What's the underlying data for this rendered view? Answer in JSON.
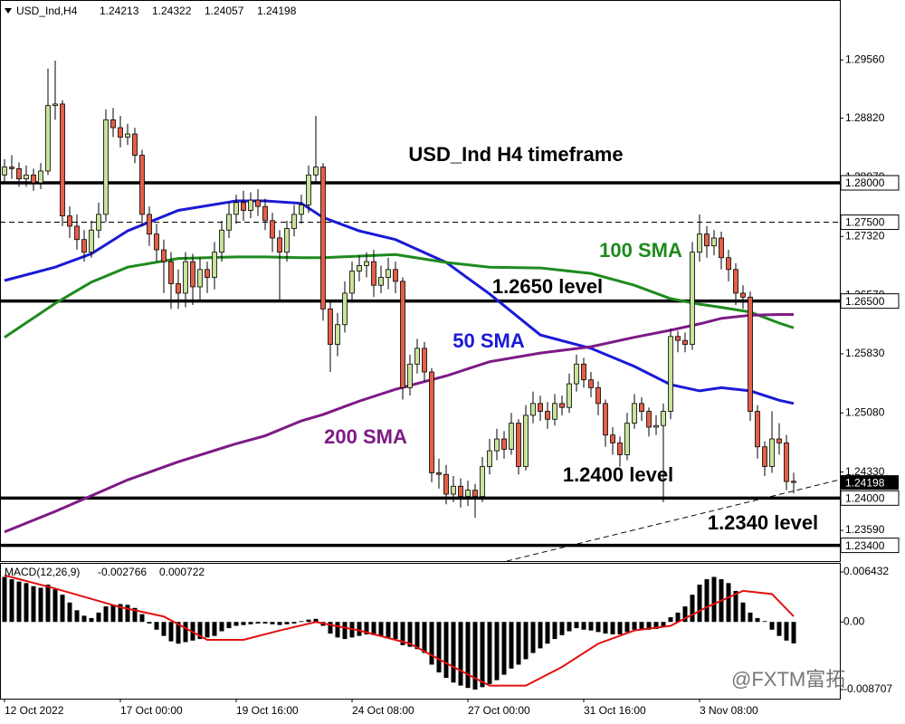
{
  "chart_data": {
    "type": "candlestick",
    "symbol": "USD_Ind,H4",
    "header_ohlc": [
      1.24213,
      1.24322,
      1.24057,
      1.24198
    ],
    "up_color": "#c9e29a",
    "down_color": "#e35f48",
    "ylim": [
      1.232,
      1.3032
    ],
    "yticks": [
      {
        "value": 1.2956,
        "label": "1.29560"
      },
      {
        "value": 1.2882,
        "label": "1.28820"
      },
      {
        "value": 1.2807,
        "label": "1.28070"
      },
      {
        "value": 1.2732,
        "label": "1.27320"
      },
      {
        "value": 1.2657,
        "label": "1.26570"
      },
      {
        "value": 1.2583,
        "label": "1.25830"
      },
      {
        "value": 1.2508,
        "label": "1.25080"
      },
      {
        "value": 1.2433,
        "label": "1.24330"
      },
      {
        "value": 1.2359,
        "label": "1.23590"
      }
    ],
    "categories": [
      "12 Oct 2022",
      null,
      null,
      null,
      null,
      null,
      null,
      null,
      null,
      null,
      null,
      null,
      null,
      null,
      null,
      null,
      "17 Oct 00:00",
      null,
      null,
      null,
      null,
      null,
      null,
      null,
      null,
      null,
      null,
      null,
      null,
      null,
      null,
      null,
      "19 Oct 16:00",
      null,
      null,
      null,
      null,
      null,
      null,
      null,
      null,
      null,
      null,
      null,
      null,
      null,
      null,
      null,
      "24 Oct 08:00",
      null,
      null,
      null,
      null,
      null,
      null,
      null,
      null,
      null,
      null,
      null,
      null,
      null,
      null,
      null,
      "27 Oct 00:00",
      null,
      null,
      null,
      null,
      null,
      null,
      null,
      null,
      null,
      null,
      null,
      null,
      null,
      null,
      null,
      "31 Oct 16:00",
      null,
      null,
      null,
      null,
      null,
      null,
      null,
      null,
      null,
      null,
      null,
      null,
      null,
      null,
      null,
      "3 Nov 08:00",
      null,
      null,
      null,
      null,
      null,
      null,
      null,
      null,
      null,
      null,
      null,
      null,
      null
    ],
    "open": [
      1.281,
      1.282,
      1.2818,
      1.2805,
      1.281,
      1.28,
      1.2815,
      1.2898,
      1.29,
      1.2758,
      1.2745,
      1.2728,
      1.2712,
      1.274,
      1.276,
      1.288,
      1.287,
      1.2858,
      1.2862,
      1.2835,
      1.276,
      1.2735,
      1.2715,
      1.27,
      1.2672,
      1.266,
      1.27,
      1.2668,
      1.269,
      1.268,
      1.2712,
      1.274,
      1.276,
      1.2775,
      1.2765,
      1.2778,
      1.277,
      1.2752,
      1.273,
      1.2712,
      1.2742,
      1.276,
      1.2772,
      1.281,
      1.282,
      1.264,
      1.2595,
      1.262,
      1.266,
      1.2688,
      1.2695,
      1.27,
      1.267,
      1.268,
      1.269,
      1.2675,
      1.254,
      1.257,
      1.259,
      1.256,
      1.2432,
      1.243,
      1.2405,
      1.2415,
      1.2402,
      1.241,
      1.2402,
      1.244,
      1.246,
      1.2475,
      1.2462,
      1.2495,
      1.244,
      1.2505,
      1.252,
      1.251,
      1.25,
      1.252,
      1.2515,
      1.2545,
      1.257,
      1.255,
      1.254,
      1.252,
      1.248,
      1.247,
      1.2455,
      1.2495,
      1.252,
      1.251,
      1.249,
      1.2492,
      1.251,
      1.2605,
      1.26,
      1.2595,
      1.2712,
      1.2735,
      1.272,
      1.273,
      1.2705,
      1.269,
      1.266,
      1.2655,
      1.251,
      1.2465,
      1.244,
      1.2475,
      1.247,
      1.24213
    ],
    "high": [
      1.283,
      1.2835,
      1.2826,
      1.2822,
      1.2818,
      1.2825,
      1.2945,
      1.2955,
      1.2905,
      1.277,
      1.276,
      1.274,
      1.2752,
      1.2775,
      1.2893,
      1.2895,
      1.2885,
      1.2875,
      1.287,
      1.2842,
      1.277,
      1.2748,
      1.2728,
      1.2712,
      1.269,
      1.2712,
      1.271,
      1.2705,
      1.27,
      1.2725,
      1.2752,
      1.2775,
      1.2785,
      1.279,
      1.2788,
      1.2792,
      1.278,
      1.2762,
      1.274,
      1.2752,
      1.2772,
      1.2785,
      1.2822,
      1.2885,
      1.2825,
      1.265,
      1.2635,
      1.2675,
      1.27,
      1.2708,
      1.2712,
      1.2715,
      1.2695,
      1.2705,
      1.27,
      1.268,
      1.2582,
      1.2602,
      1.2598,
      1.2565,
      1.245,
      1.2442,
      1.2428,
      1.2425,
      1.2422,
      1.2418,
      1.2452,
      1.2475,
      1.2488,
      1.2485,
      1.2508,
      1.25,
      1.2518,
      1.2535,
      1.253,
      1.2522,
      1.2532,
      1.253,
      1.2558,
      1.2582,
      1.2578,
      1.256,
      1.2548,
      1.2525,
      1.249,
      1.2478,
      1.2508,
      1.2532,
      1.2528,
      1.2515,
      1.2505,
      1.252,
      1.2615,
      1.2612,
      1.261,
      1.2725,
      1.276,
      1.2745,
      1.274,
      1.2738,
      1.2715,
      1.2698,
      1.267,
      1.2662,
      1.2518,
      1.2472,
      1.251,
      1.2495,
      1.248,
      1.24322
    ],
    "low": [
      1.28,
      1.2805,
      1.2795,
      1.2795,
      1.279,
      1.2792,
      1.281,
      1.288,
      1.2745,
      1.273,
      1.2715,
      1.27,
      1.2705,
      1.273,
      1.275,
      1.2858,
      1.2845,
      1.2848,
      1.2825,
      1.2745,
      1.272,
      1.27,
      1.266,
      1.264,
      1.264,
      1.2642,
      1.2645,
      1.265,
      1.266,
      1.2665,
      1.27,
      1.273,
      1.2748,
      1.2752,
      1.2755,
      1.2758,
      1.274,
      1.2712,
      1.265,
      1.27,
      1.2732,
      1.2748,
      1.2762,
      1.28,
      1.2625,
      1.256,
      1.258,
      1.261,
      1.2648,
      1.2675,
      1.268,
      1.2655,
      1.266,
      1.2665,
      1.266,
      1.2525,
      1.253,
      1.2558,
      1.2548,
      1.242,
      1.2412,
      1.2392,
      1.2395,
      1.2388,
      1.239,
      1.2375,
      1.2395,
      1.243,
      1.2448,
      1.245,
      1.2455,
      1.243,
      1.2435,
      1.2495,
      1.2498,
      1.2488,
      1.2492,
      1.2505,
      1.2508,
      1.2535,
      1.254,
      1.2528,
      1.2505,
      1.2465,
      1.2455,
      1.244,
      1.2448,
      1.2488,
      1.2498,
      1.2478,
      1.248,
      1.2395,
      1.25,
      1.2585,
      1.2585,
      1.2588,
      1.27,
      1.2705,
      1.2708,
      1.269,
      1.2675,
      1.2645,
      1.264,
      1.2498,
      1.245,
      1.2428,
      1.2432,
      1.2455,
      1.241,
      1.24057
    ],
    "close": [
      1.282,
      1.2818,
      1.2805,
      1.281,
      1.28,
      1.2815,
      1.2898,
      1.29,
      1.2758,
      1.2745,
      1.2728,
      1.2712,
      1.274,
      1.276,
      1.288,
      1.287,
      1.2858,
      1.2862,
      1.2835,
      1.276,
      1.2735,
      1.2715,
      1.27,
      1.2672,
      1.266,
      1.27,
      1.2668,
      1.269,
      1.268,
      1.2712,
      1.274,
      1.276,
      1.2775,
      1.2765,
      1.2778,
      1.277,
      1.2752,
      1.273,
      1.2712,
      1.2742,
      1.276,
      1.2772,
      1.281,
      1.282,
      1.264,
      1.2595,
      1.262,
      1.266,
      1.2688,
      1.2695,
      1.27,
      1.267,
      1.268,
      1.269,
      1.2675,
      1.254,
      1.257,
      1.259,
      1.256,
      1.2432,
      1.243,
      1.2405,
      1.2415,
      1.2402,
      1.241,
      1.2402,
      1.244,
      1.246,
      1.2475,
      1.2462,
      1.2495,
      1.244,
      1.2505,
      1.252,
      1.251,
      1.25,
      1.252,
      1.2515,
      1.2545,
      1.257,
      1.255,
      1.254,
      1.252,
      1.248,
      1.247,
      1.2455,
      1.2495,
      1.252,
      1.251,
      1.249,
      1.2492,
      1.251,
      1.2605,
      1.26,
      1.2595,
      1.2712,
      1.2735,
      1.272,
      1.273,
      1.2705,
      1.269,
      1.266,
      1.2655,
      1.251,
      1.2465,
      1.244,
      1.2475,
      1.247,
      1.2421,
      1.24198
    ],
    "series": [
      {
        "name": "50 SMA",
        "color": "#1a1ad6",
        "x": [
          0,
          7,
          12,
          17,
          24,
          32,
          36,
          41,
          44,
          49,
          54,
          61,
          67,
          74,
          81,
          87,
          92,
          96,
          99,
          103,
          107,
          109
        ],
        "values": [
          1.2676,
          1.2693,
          1.271,
          1.2739,
          1.2765,
          1.2777,
          1.2777,
          1.2774,
          1.2756,
          1.2739,
          1.2728,
          1.2699,
          1.2659,
          1.2607,
          1.259,
          1.2567,
          1.2544,
          1.2536,
          1.254,
          1.2536,
          1.2524,
          1.252
        ]
      },
      {
        "name": "100 SMA",
        "color": "#1e8a1e",
        "x": [
          0,
          7,
          12,
          17,
          24,
          32,
          36,
          41,
          44,
          49,
          54,
          61,
          67,
          74,
          81,
          87,
          92,
          96,
          99,
          103,
          107,
          109
        ],
        "values": [
          1.2604,
          1.2647,
          1.2674,
          1.2693,
          1.2704,
          1.2706,
          1.2706,
          1.2705,
          1.2705,
          1.2707,
          1.2709,
          1.2699,
          1.2693,
          1.2692,
          1.2685,
          1.267,
          1.2653,
          1.2646,
          1.2642,
          1.2636,
          1.2622,
          1.2616
        ]
      },
      {
        "name": "200 SMA",
        "color": "#7e1a86",
        "x": [
          0,
          7,
          12,
          17,
          24,
          32,
          36,
          41,
          44,
          49,
          54,
          61,
          67,
          74,
          81,
          87,
          92,
          96,
          99,
          103,
          107,
          109
        ],
        "values": [
          1.2357,
          1.2383,
          1.2403,
          1.2423,
          1.2446,
          1.2469,
          1.2479,
          1.2498,
          1.2506,
          1.2523,
          1.2538,
          1.2555,
          1.2573,
          1.2584,
          1.2592,
          1.2604,
          1.2613,
          1.2621,
          1.2628,
          1.2632,
          1.2633,
          1.2633
        ]
      }
    ],
    "levels": [
      {
        "value": 1.28,
        "label": "1.28000",
        "style": "solid"
      },
      {
        "value": 1.275,
        "label": "1.27500",
        "style": "dashed"
      },
      {
        "value": 1.265,
        "label": "1.26500",
        "style": "solid"
      },
      {
        "value": 1.24,
        "label": "1.24000",
        "style": "solid"
      },
      {
        "value": 1.234,
        "label": "1.23400",
        "style": "solid"
      }
    ],
    "current_price": {
      "value": 1.24198,
      "label": "1.24198"
    },
    "annotations": [
      "USD_Ind H4 timeframe",
      "1.2650 level",
      "1.2400 level",
      "1.2340 level"
    ],
    "macd": {
      "label": "MACD(12,26,9)",
      "main_value": -0.002766,
      "signal_value": 0.000722,
      "ylim": [
        -0.00988,
        0.0076
      ],
      "yticks": [
        0.006432,
        {
          "value": 0,
          "label": "0.00"
        },
        -0.008707
      ],
      "histogram": [
        0.0058,
        0.0055,
        0.0052,
        0.005,
        0.0046,
        0.0044,
        0.0048,
        0.0042,
        0.0035,
        0.0025,
        0.0015,
        0.0008,
        0.0005,
        0.0012,
        0.002,
        0.0022,
        0.0023,
        0.0022,
        0.0018,
        0.001,
        -0.0002,
        -0.001,
        -0.0018,
        -0.0025,
        -0.0028,
        -0.0026,
        -0.0024,
        -0.0022,
        -0.002,
        -0.0018,
        -0.0012,
        -0.0008,
        -0.0005,
        -0.0004,
        -0.0003,
        -0.0002,
        -0.0002,
        -0.0003,
        -0.0004,
        -0.0003,
        -0.0002,
        0.0001,
        0.0003,
        0.0004,
        -0.0005,
        -0.0015,
        -0.002,
        -0.0022,
        -0.002,
        -0.0018,
        -0.0016,
        -0.0017,
        -0.0018,
        -0.002,
        -0.0022,
        -0.003,
        -0.0032,
        -0.0035,
        -0.004,
        -0.0055,
        -0.0065,
        -0.0072,
        -0.0078,
        -0.0082,
        -0.0085,
        -0.0087,
        -0.0084,
        -0.008,
        -0.0075,
        -0.0068,
        -0.006,
        -0.0055,
        -0.0048,
        -0.004,
        -0.0034,
        -0.0028,
        -0.0022,
        -0.0017,
        -0.0012,
        -0.0008,
        -0.001,
        -0.0011,
        -0.0013,
        -0.0015,
        -0.0016,
        -0.0016,
        -0.0013,
        -0.001,
        -0.0009,
        -0.001,
        -0.0009,
        -0.0006,
        0.0006,
        0.0012,
        0.002,
        0.0035,
        0.0048,
        0.0055,
        0.0058,
        0.0055,
        0.005,
        0.004,
        0.0025,
        0.0012,
        0.0005,
        0.0001,
        -0.001,
        -0.0018,
        -0.0024,
        -0.002766
      ],
      "signal_color": "#e01010",
      "signal_x": [
        0,
        7,
        16,
        22,
        28,
        33,
        38,
        43,
        49,
        56,
        62,
        67,
        72,
        77,
        82,
        87,
        92,
        97,
        102,
        106,
        109
      ],
      "signal": [
        0.006,
        0.0043,
        0.0019,
        0.0007,
        -0.0023,
        -0.0023,
        -0.0011,
        0.0,
        -0.0011,
        -0.0028,
        -0.0058,
        -0.0082,
        -0.0082,
        -0.0058,
        -0.0028,
        -0.0011,
        -0.0005,
        0.0019,
        0.004,
        0.0036,
        0.000722
      ]
    },
    "watermark": "@FXTM富拓"
  }
}
